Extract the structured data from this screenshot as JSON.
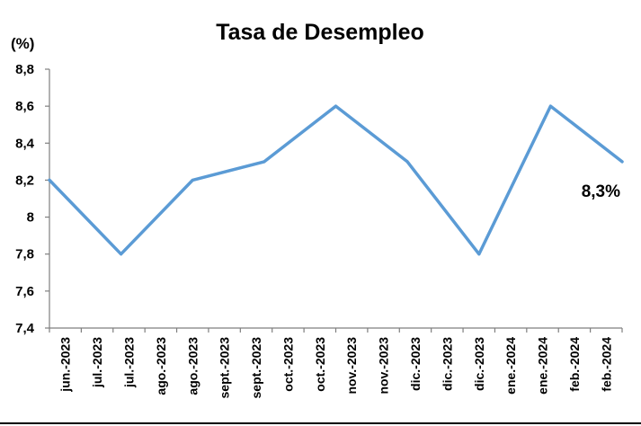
{
  "chart_data": {
    "type": "line",
    "title": "Tasa de Desempleo",
    "unit_label": "(%)",
    "xlabel": "",
    "ylabel": "",
    "ylim": [
      7.4,
      8.8
    ],
    "y_ticks": [
      "7,4",
      "7,6",
      "7,8",
      "8",
      "8,2",
      "8,4",
      "8,6",
      "8,8"
    ],
    "categories": [
      "jun.-2023",
      "jul.-2023",
      "jul.-2023",
      "ago.-2023",
      "ago.-2023",
      "sept.-2023",
      "sept.-2023",
      "oct.-2023",
      "oct.-2023",
      "nov.-2023",
      "nov.-2023",
      "dic.-2023",
      "dic.-2023",
      "dic.-2023",
      "ene.-2024",
      "ene.-2024",
      "feb.-2024",
      "feb.-2024"
    ],
    "series": [
      {
        "x": [
          "jun.-2023",
          "jul.-2023",
          "ago.-2023",
          "sept.-2023",
          "oct.-2023",
          "nov.-2023",
          "dic.-2023",
          "ene.-2024",
          "feb.-2024"
        ],
        "values": [
          8.2,
          7.8,
          8.2,
          8.3,
          8.6,
          8.3,
          7.8,
          8.6,
          8.3
        ],
        "color": "#5b9bd5"
      }
    ],
    "annotation": "8,3%",
    "grid": false
  }
}
